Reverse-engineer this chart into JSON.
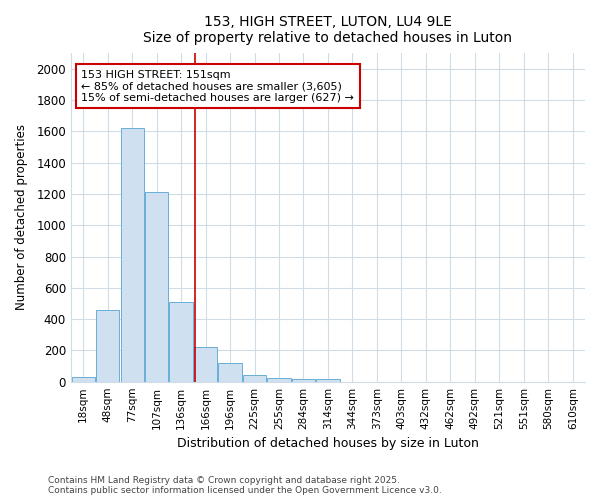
{
  "title1": "153, HIGH STREET, LUTON, LU4 9LE",
  "title2": "Size of property relative to detached houses in Luton",
  "xlabel": "Distribution of detached houses by size in Luton",
  "ylabel": "Number of detached properties",
  "categories": [
    "18sqm",
    "48sqm",
    "77sqm",
    "107sqm",
    "136sqm",
    "166sqm",
    "196sqm",
    "225sqm",
    "255sqm",
    "284sqm",
    "314sqm",
    "344sqm",
    "373sqm",
    "403sqm",
    "432sqm",
    "462sqm",
    "492sqm",
    "521sqm",
    "551sqm",
    "580sqm",
    "610sqm"
  ],
  "values": [
    30,
    460,
    1620,
    1210,
    510,
    220,
    120,
    45,
    25,
    20,
    15,
    0,
    0,
    0,
    0,
    0,
    0,
    0,
    0,
    0,
    0
  ],
  "bar_color": "#cfe0f0",
  "bar_edge_color": "#6aafd6",
  "vline_x": 4.55,
  "vline_color": "#cc0000",
  "annotation_line1": "153 HIGH STREET: 151sqm",
  "annotation_line2": "← 85% of detached houses are smaller (3,605)",
  "annotation_line3": "15% of semi-detached houses are larger (627) →",
  "annotation_box_color": "white",
  "annotation_box_edge": "#cc0000",
  "ylim": [
    0,
    2100
  ],
  "yticks": [
    0,
    200,
    400,
    600,
    800,
    1000,
    1200,
    1400,
    1600,
    1800,
    2000
  ],
  "footer1": "Contains HM Land Registry data © Crown copyright and database right 2025.",
  "footer2": "Contains public sector information licensed under the Open Government Licence v3.0.",
  "bg_color": "#ffffff",
  "plot_bg_color": "#ffffff",
  "grid_color": "#d0dce8"
}
